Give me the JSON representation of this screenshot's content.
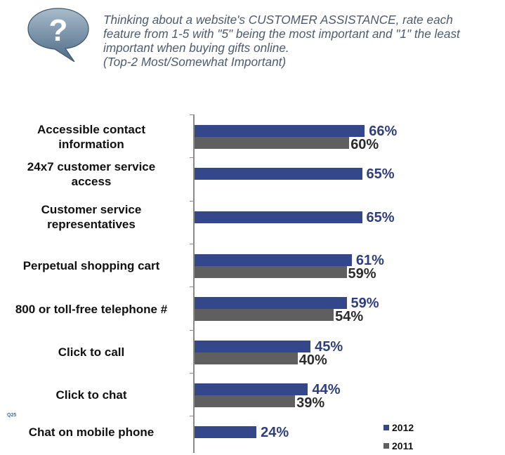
{
  "header": {
    "icon": "question-bubble-icon",
    "question_lines": [
      "Thinking about a website's CUSTOMER ASSISTANCE, rate each",
      "feature from 1-5 with \"5\" being the most important and \"1\" the least",
      "important when buying gifts online.",
      "(Top-2 Most/Somewhat Important)"
    ]
  },
  "footnote": "Q25",
  "legend": [
    {
      "label": "2012",
      "color": "#33478a"
    },
    {
      "label": "2011",
      "color": "#5f5f5f"
    }
  ],
  "chart_data": {
    "type": "bar",
    "orientation": "horizontal",
    "title": "Thinking about a website's CUSTOMER ASSISTANCE, rate each feature from 1-5 with \"5\" being the most important and \"1\" the least important when buying gifts online. (Top-2 Most/Somewhat Important)",
    "xlabel": "",
    "ylabel": "",
    "xlim": [
      0,
      100
    ],
    "grid": false,
    "legend_position": "bottom-right",
    "categories": [
      "Accessible contact information",
      "24x7 customer service access",
      "Customer service representatives",
      "Perpetual shopping cart",
      "800 or toll-free telephone #",
      "Click to call",
      "Click to chat",
      "Chat on mobile phone"
    ],
    "category_label_lines": [
      [
        "Accessible contact",
        "information"
      ],
      [
        "24x7 customer service",
        "access"
      ],
      [
        "Customer service",
        "representatives"
      ],
      [
        "Perpetual shopping cart"
      ],
      [
        "800 or toll-free telephone #"
      ],
      [
        "Click to call"
      ],
      [
        "Click to chat"
      ],
      [
        "Chat on mobile phone"
      ]
    ],
    "series": [
      {
        "name": "2012",
        "color": "#33478a",
        "values": [
          66,
          65,
          65,
          61,
          59,
          45,
          44,
          24
        ]
      },
      {
        "name": "2011",
        "color": "#5f5f5f",
        "values": [
          60,
          null,
          null,
          59,
          54,
          40,
          39,
          null
        ]
      }
    ],
    "value_labels": {
      "2012": [
        "66%",
        "65%",
        "65%",
        "61%",
        "59%",
        "45%",
        "44%",
        "24%"
      ],
      "2011": [
        "60%",
        "",
        "",
        "59%",
        "54%",
        "40%",
        "39%",
        ""
      ]
    }
  }
}
